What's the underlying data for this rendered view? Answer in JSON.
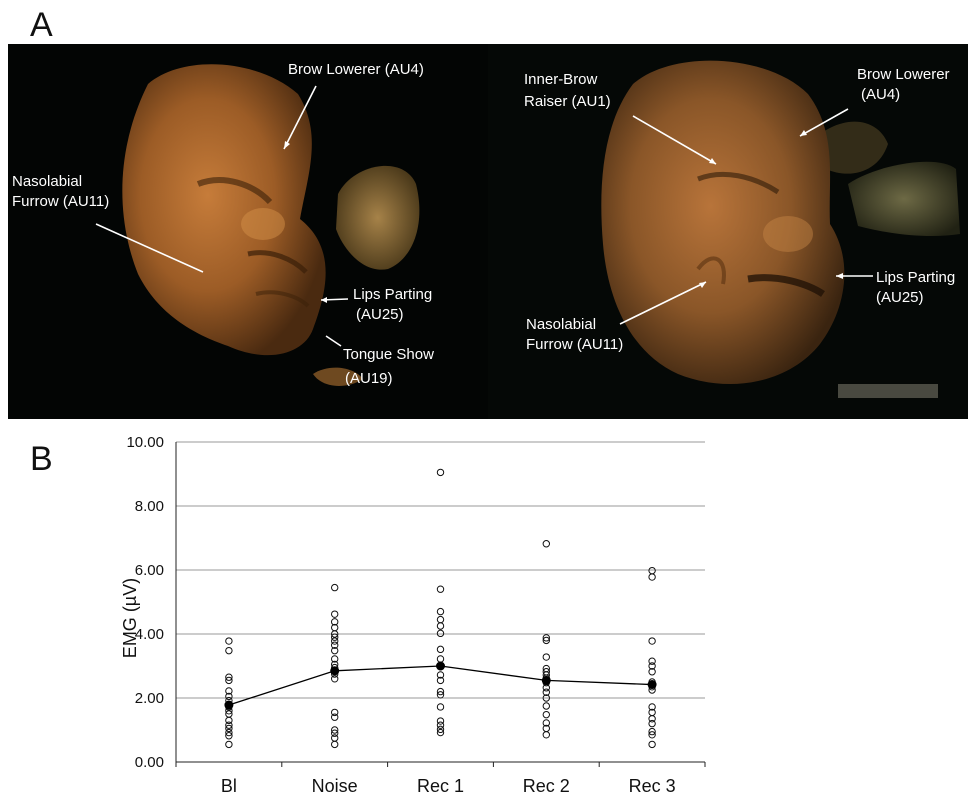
{
  "panel_labels": {
    "a": "A",
    "b": "B"
  },
  "left_image": {
    "annotations": {
      "brow": [
        "Brow Lowerer (AU4)"
      ],
      "nasolabial": [
        "Nasolabial",
        "Furrow (AU11)"
      ],
      "lips": [
        "Lips Parting",
        "(AU25)"
      ],
      "tongue": [
        "Tongue Show",
        "(AU19)"
      ]
    }
  },
  "right_image": {
    "annotations": {
      "inner_brow": [
        "Inner-Brow",
        "Raiser (AU1)"
      ],
      "brow": [
        "Brow Lowerer",
        "(AU4)"
      ],
      "lips": [
        "Lips Parting",
        "(AU25)"
      ],
      "nasolabial": [
        "Nasolabial",
        "Furrow (AU11)"
      ]
    }
  },
  "colors": {
    "background": "#030504",
    "face": "#a8652a",
    "annotation": "#ffffff",
    "grid": "#9a9a9a",
    "line": "#000000"
  },
  "chart_data": {
    "type": "scatter",
    "ylabel": "EMG (µV)",
    "ylim": [
      0,
      10
    ],
    "yticks": [
      "0.00",
      "2.00",
      "4.00",
      "6.00",
      "8.00",
      "10.00"
    ],
    "categories": [
      "Bl",
      "Noise",
      "Rec 1",
      "Rec 2",
      "Rec 3"
    ],
    "grid": true,
    "points": [
      [
        3.78,
        3.48,
        2.65,
        2.55,
        2.22,
        2.05,
        1.92,
        1.78,
        1.72,
        1.6,
        1.5,
        1.3,
        1.15,
        1.05,
        0.92,
        0.82,
        0.55
      ],
      [
        5.45,
        4.62,
        4.38,
        4.2,
        4.0,
        3.9,
        3.78,
        3.65,
        3.48,
        3.22,
        3.05,
        2.95,
        2.85,
        2.75,
        2.6,
        1.55,
        1.4,
        1.0,
        0.9,
        0.75,
        0.55
      ],
      [
        9.05,
        5.4,
        4.7,
        4.45,
        4.25,
        4.02,
        3.52,
        3.22,
        2.98,
        2.72,
        2.55,
        2.2,
        2.1,
        1.72,
        1.28,
        1.15,
        1.02,
        0.92
      ],
      [
        6.82,
        3.88,
        3.8,
        3.28,
        2.92,
        2.82,
        2.72,
        2.62,
        2.48,
        2.32,
        2.18,
        2.0,
        1.75,
        1.48,
        1.22,
        1.05,
        0.85
      ],
      [
        5.98,
        5.78,
        3.78,
        3.15,
        3.0,
        2.82,
        2.5,
        2.42,
        2.35,
        2.25,
        1.72,
        1.55,
        1.35,
        1.2,
        0.95,
        0.85,
        0.55
      ]
    ],
    "means": [
      1.78,
      2.85,
      3.0,
      2.55,
      2.42
    ]
  }
}
